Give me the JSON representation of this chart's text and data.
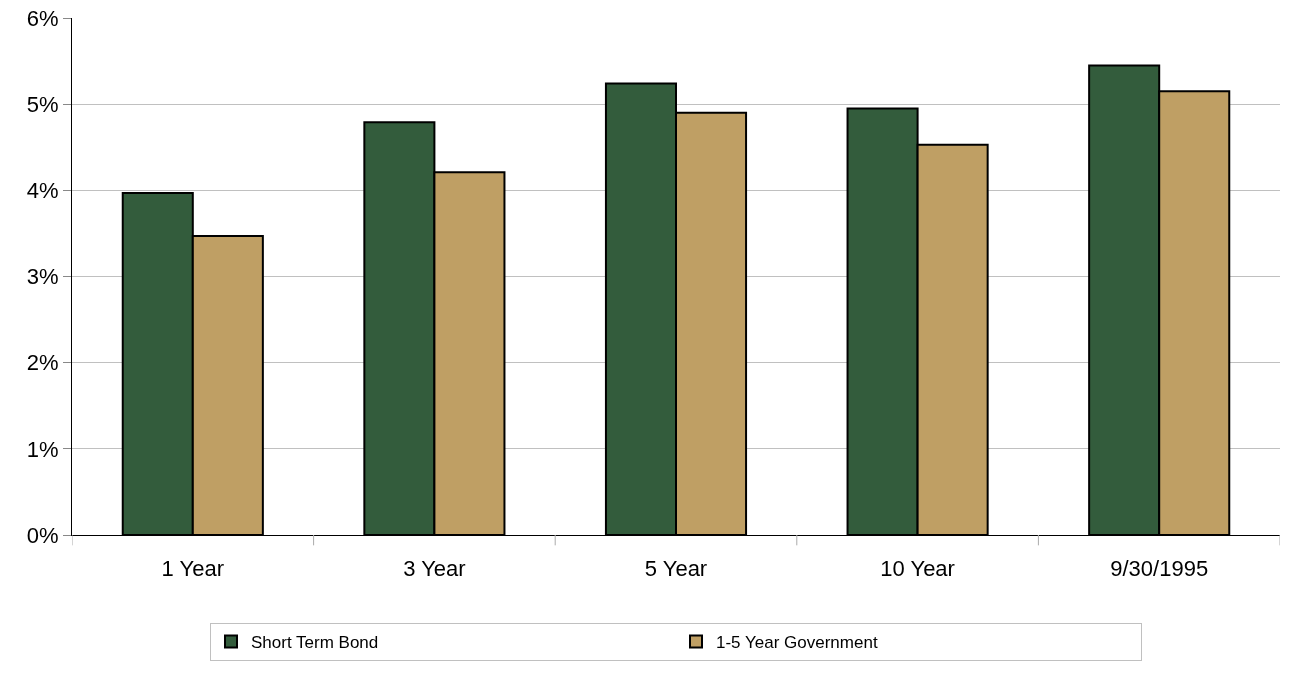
{
  "chart_data": {
    "type": "bar",
    "categories": [
      "1 Year",
      "3 Year",
      "5 Year",
      "10 Year",
      "9/30/1995"
    ],
    "series": [
      {
        "name": "Short Term Bond",
        "color": "#335c3c",
        "values": [
          3.97,
          4.79,
          5.24,
          4.95,
          5.45
        ]
      },
      {
        "name": "1-5 Year Government",
        "color": "#bf9f64",
        "values": [
          3.47,
          4.21,
          4.9,
          4.53,
          5.15
        ]
      }
    ],
    "ylim": [
      0,
      6
    ],
    "yticks": [
      {
        "value": 0,
        "label": "0%"
      },
      {
        "value": 1,
        "label": "1%"
      },
      {
        "value": 2,
        "label": "2%"
      },
      {
        "value": 3,
        "label": "3%"
      },
      {
        "value": 4,
        "label": "4%"
      },
      {
        "value": 5,
        "label": "5%"
      },
      {
        "value": 6,
        "label": "6%"
      }
    ],
    "grid": "y",
    "legend": "bottom"
  }
}
